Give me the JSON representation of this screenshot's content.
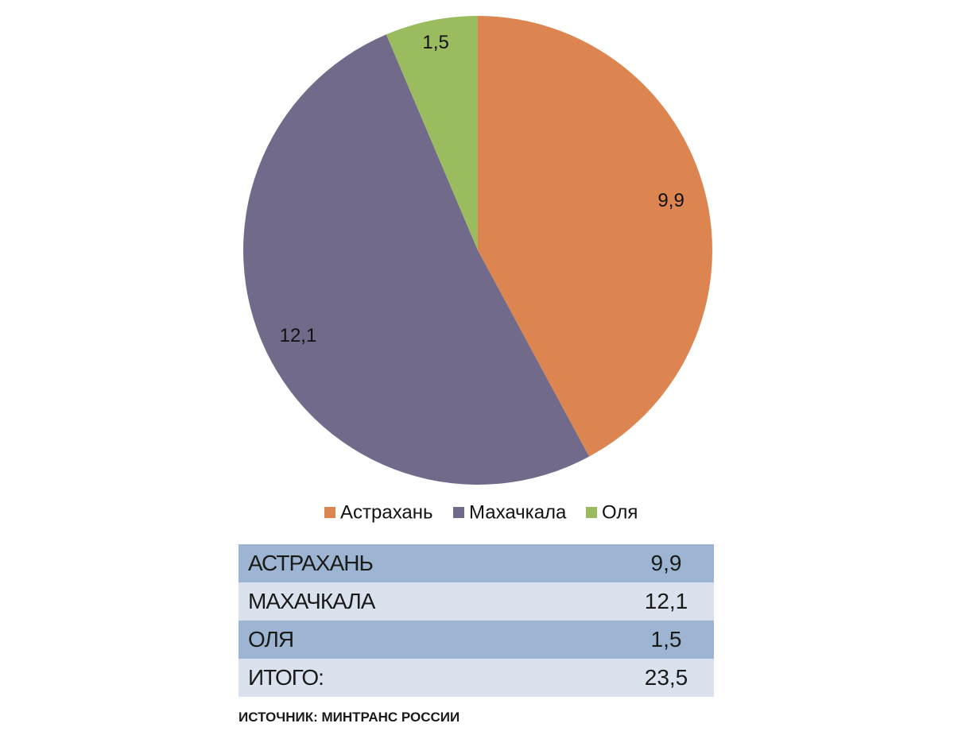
{
  "chart_data": {
    "type": "pie",
    "categories": [
      "Астрахань",
      "Махачкала",
      "Оля"
    ],
    "values": [
      9.9,
      12.1,
      1.5
    ],
    "value_labels": [
      "9,9",
      "12,1",
      "1,5"
    ],
    "colors": [
      "#dd8550",
      "#716a8a",
      "#9bbb5f"
    ]
  },
  "table": {
    "rows": [
      [
        "АСТРАХАНЬ",
        "9,9"
      ],
      [
        "МАХАЧКАЛА",
        "12,1"
      ],
      [
        "ОЛЯ",
        "1,5"
      ],
      [
        "ИТОГО:",
        "23,5"
      ]
    ]
  },
  "source": "ИСТОЧНИК: МИНТРАНС РОССИИ"
}
